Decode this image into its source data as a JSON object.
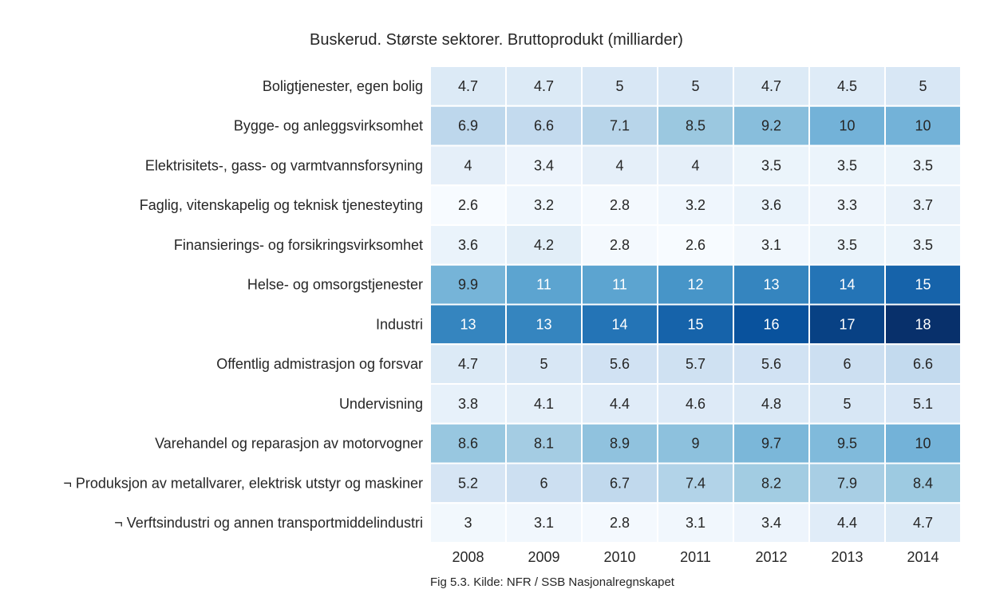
{
  "chart_data": {
    "type": "heatmap",
    "title": "Buskerud. Største sektorer. Bruttoprodukt (milliarder)",
    "caption": "Fig 5.3. Kilde: NFR / SSB Nasjonalregnskapet",
    "colormap": "Blues",
    "value_range": [
      2.6,
      18
    ],
    "columns": [
      "2008",
      "2009",
      "2010",
      "2011",
      "2012",
      "2013",
      "2014"
    ],
    "rows": [
      "Boligtjenester, egen bolig",
      "Bygge- og anleggsvirksomhet",
      "Elektrisitets-, gass- og varmtvannsforsyning",
      "Faglig, vitenskapelig og teknisk tjenesteyting",
      "Finansierings- og forsikringsvirksomhet",
      "Helse- og omsorgstjenester",
      "Industri",
      "Offentlig admistrasjon og forsvar",
      "Undervisning",
      "Varehandel og reparasjon av motorvogner",
      "¬ Produksjon av metallvarer, elektrisk utstyr og maskiner",
      "¬ Verftsindustri og annen transportmiddelindustri"
    ],
    "values": [
      [
        4.7,
        4.7,
        5,
        5,
        4.7,
        4.5,
        5
      ],
      [
        6.9,
        6.6,
        7.1,
        8.5,
        9.2,
        10,
        10
      ],
      [
        4,
        3.4,
        4,
        4,
        3.5,
        3.5,
        3.5
      ],
      [
        2.6,
        3.2,
        2.8,
        3.2,
        3.6,
        3.3,
        3.7
      ],
      [
        3.6,
        4.2,
        2.8,
        2.6,
        3.1,
        3.5,
        3.5
      ],
      [
        9.9,
        11,
        11,
        12,
        13,
        14,
        15
      ],
      [
        13,
        13,
        14,
        15,
        16,
        17,
        18
      ],
      [
        4.7,
        5,
        5.6,
        5.7,
        5.6,
        6,
        6.6
      ],
      [
        3.8,
        4.1,
        4.4,
        4.6,
        4.8,
        5,
        5.1
      ],
      [
        8.6,
        8.1,
        8.9,
        9,
        9.7,
        9.5,
        10
      ],
      [
        5.2,
        6,
        6.7,
        7.4,
        8.2,
        7.9,
        8.4
      ],
      [
        3,
        3.1,
        2.8,
        3.1,
        3.4,
        4.4,
        4.7
      ]
    ]
  }
}
